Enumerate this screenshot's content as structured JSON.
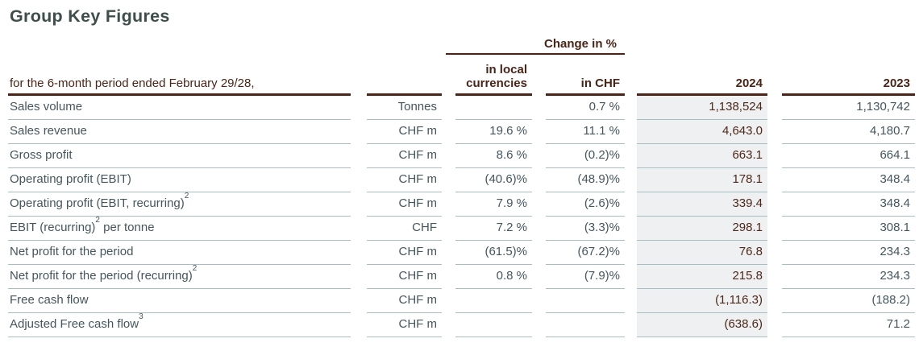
{
  "title": "Group Key Figures",
  "colors": {
    "title_text": "#3e4f4b",
    "accent_brown": "#4a2517",
    "body_teal": "#44565e",
    "value_2024_brown": "#4f2817",
    "row_line": "#a9bdc5",
    "col_2024_shade": "#eef0f2"
  },
  "table": {
    "group_header": "Change in %",
    "period_label": "for the 6-month period ended February 29/28,",
    "columns": {
      "local": "in local currencies",
      "chf": "in CHF",
      "y2024": "2024",
      "y2023": "2023"
    },
    "rows": [
      {
        "label": {
          "pre": "Sales volume",
          "sup": "",
          "post": ""
        },
        "unit": "Tonnes",
        "local": "",
        "chf": "0.7 %",
        "y2024": "1,138,524",
        "y2023": "1,130,742"
      },
      {
        "label": {
          "pre": "Sales revenue",
          "sup": "",
          "post": ""
        },
        "unit": "CHF m",
        "local": "19.6 %",
        "chf": "11.1 %",
        "y2024": "4,643.0",
        "y2023": "4,180.7"
      },
      {
        "label": {
          "pre": "Gross profit",
          "sup": "",
          "post": ""
        },
        "unit": "CHF m",
        "local": "8.6 %",
        "chf": "(0.2)%",
        "y2024": "663.1",
        "y2023": "664.1"
      },
      {
        "label": {
          "pre": "Operating profit (EBIT)",
          "sup": "",
          "post": ""
        },
        "unit": "CHF m",
        "local": "(40.6)%",
        "chf": "(48.9)%",
        "y2024": "178.1",
        "y2023": "348.4"
      },
      {
        "label": {
          "pre": "Operating profit (EBIT, recurring)",
          "sup": "2",
          "post": ""
        },
        "unit": "CHF m",
        "local": "7.9 %",
        "chf": "(2.6)%",
        "y2024": "339.4",
        "y2023": "348.4"
      },
      {
        "label": {
          "pre": "EBIT (recurring)",
          "sup": "2",
          "post": " per tonne"
        },
        "unit": "CHF",
        "local": "7.2 %",
        "chf": "(3.3)%",
        "y2024": "298.1",
        "y2023": "308.1"
      },
      {
        "label": {
          "pre": "Net profit for the period",
          "sup": "",
          "post": ""
        },
        "unit": "CHF m",
        "local": "(61.5)%",
        "chf": "(67.2)%",
        "y2024": "76.8",
        "y2023": "234.3"
      },
      {
        "label": {
          "pre": "Net profit for the period (recurring)",
          "sup": "2",
          "post": ""
        },
        "unit": "CHF m",
        "local": "0.8 %",
        "chf": "(7.9)%",
        "y2024": "215.8",
        "y2023": "234.3"
      },
      {
        "label": {
          "pre": "Free cash flow",
          "sup": "",
          "post": ""
        },
        "unit": "CHF m",
        "local": "",
        "chf": "",
        "y2024": "(1,116.3)",
        "y2023": "(188.2)"
      },
      {
        "label": {
          "pre": "Adjusted Free cash flow",
          "sup": "3",
          "post": ""
        },
        "unit": "CHF m",
        "local": "",
        "chf": "",
        "y2024": "(638.6)",
        "y2023": "71.2"
      }
    ]
  }
}
